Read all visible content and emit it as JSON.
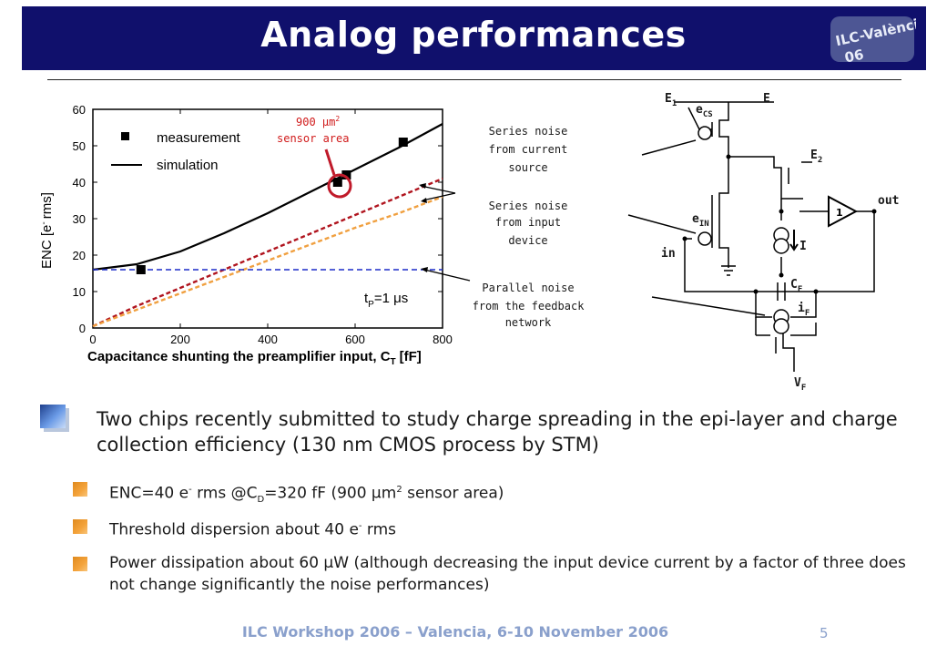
{
  "title": "Analog performances",
  "logo": {
    "line1": "ILC-València",
    "line2": "06"
  },
  "chart_data": {
    "type": "line",
    "xlabel": "Capacitance shunting the preamplifier input, C",
    "xlabel_sub": "T",
    "xlabel_unit": "[fF]",
    "ylabel": "ENC [e",
    "ylabel_sup": "-",
    "ylabel_unit": "rms]",
    "xlim": [
      0,
      800
    ],
    "ylim": [
      0,
      60
    ],
    "xticks": [
      "0",
      "200",
      "400",
      "600",
      "800"
    ],
    "yticks": [
      "0",
      "10",
      "20",
      "30",
      "40",
      "50",
      "60"
    ],
    "legend": {
      "measurement": "measurement",
      "simulation": "simulation"
    },
    "annotation": {
      "l1a": "900 ",
      "l1b": "μm",
      "l1c": "2",
      "l2": "sensor area"
    },
    "tp": {
      "a": "t",
      "sub": "P",
      "b": "=1 ",
      "c": "μs"
    },
    "series": [
      {
        "name": "measurement",
        "x": [
          110,
          560,
          580,
          710
        ],
        "y": [
          16,
          40,
          42,
          51
        ]
      },
      {
        "name": "simulation",
        "x": [
          0,
          100,
          200,
          300,
          400,
          500,
          600,
          700,
          800
        ],
        "y": [
          16,
          17.5,
          21,
          26,
          31.5,
          37.5,
          43.5,
          49.5,
          56
        ]
      },
      {
        "x": [
          0,
          100,
          200,
          300,
          400,
          500,
          600,
          700,
          800
        ],
        "y": [
          0.5,
          6,
          11,
          16,
          21,
          26,
          31,
          36,
          41
        ]
      },
      {
        "x": [
          0,
          100,
          200,
          300,
          400,
          500,
          600,
          700,
          800
        ],
        "y": [
          0.5,
          5,
          9.5,
          14,
          18.5,
          23,
          27.5,
          31.5,
          36
        ]
      },
      {
        "x": [
          0,
          800
        ],
        "y": [
          16,
          16
        ]
      }
    ]
  },
  "circuit": {
    "series_current": [
      "Series noise",
      "from current",
      "source"
    ],
    "series_input": [
      "Series noise",
      "from input",
      "device"
    ],
    "parallel": [
      "Parallel noise",
      "from the feedback",
      "network"
    ],
    "E1": "E",
    "E1_sub": "1",
    "E": "E",
    "E2": "E",
    "E2_sub": "2",
    "ecs": "e",
    "ecs_sub": "CS",
    "ein": "e",
    "ein_sub": "IN",
    "in": "in",
    "out": "out",
    "I": "I",
    "amp": "1",
    "CF": "C",
    "CF_sub": "F",
    "iF": "i",
    "iF_sub": "F",
    "VF": "V",
    "VF_sub": "F"
  },
  "bullet1": "Two chips recently submitted to study charge spreading in the epi-layer and charge collection efficiency (130 nm CMOS process by STM)",
  "sub_bullets": {
    "enc": {
      "a": "ENC=40 e",
      "sup": "-",
      "b": " rms @C",
      "sub": "D",
      "c": "=320 fF (900 μm",
      "sup2": "2",
      "d": " sensor area)"
    },
    "threshold": {
      "a": "Threshold dispersion about 40 e",
      "sup": "-",
      "b": " rms"
    },
    "power": "Power dissipation about 60 μW (although decreasing the input device current by a factor of three does not change significantly the noise performances)"
  },
  "footer": "ILC Workshop 2006 – Valencia, 6-10 November 2006",
  "page_number": "5",
  "colors": {
    "title_bg": "#10106c",
    "sim": "#000000",
    "red_dash": "#b0141e",
    "orange_dash": "#f0a040",
    "blue_dash": "#1c2cc8",
    "bullet_blue": "#3c6cc8",
    "bullet_orange": "#f09a2a",
    "footer": "#8aa0cc"
  }
}
